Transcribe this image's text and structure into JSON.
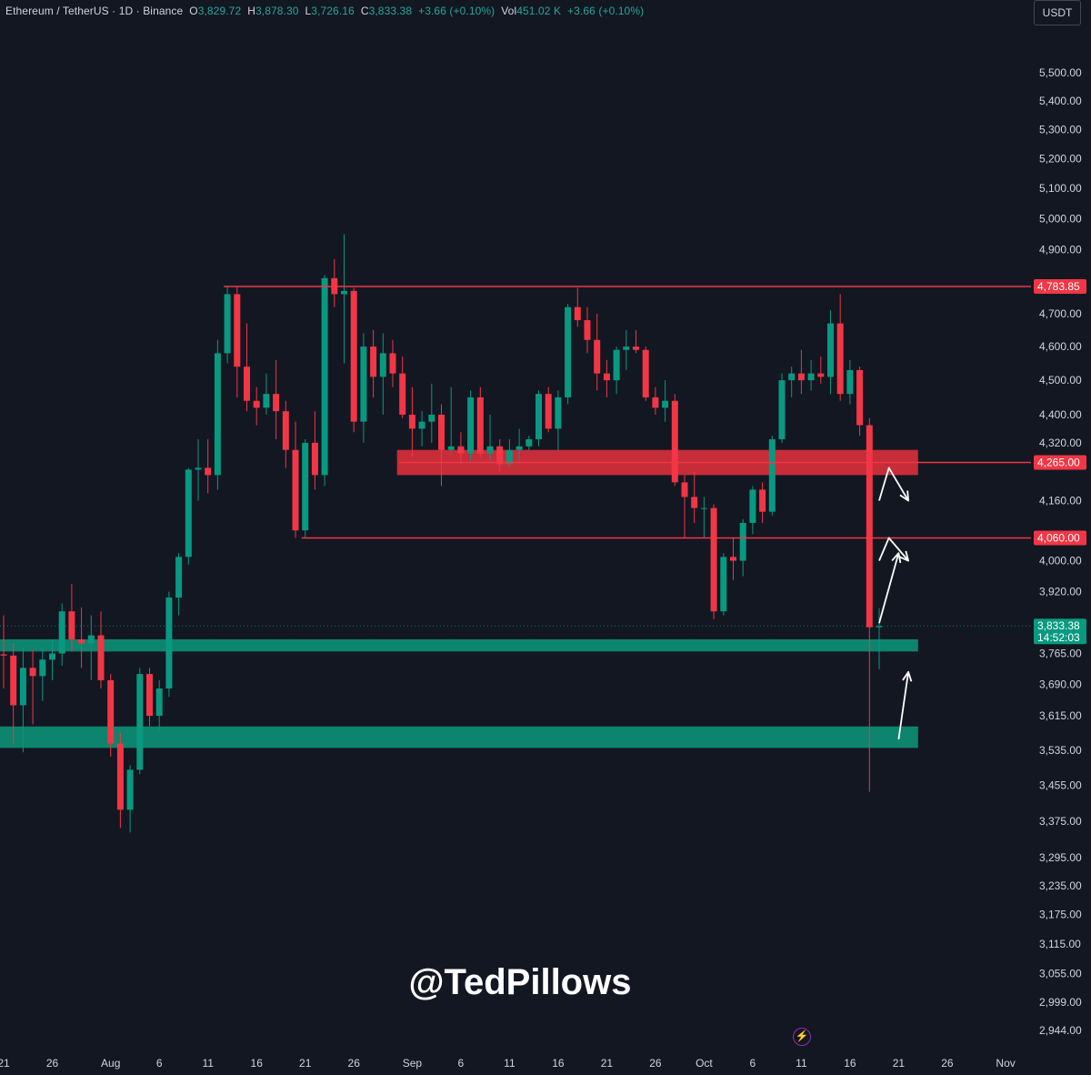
{
  "legend": {
    "symbol": "Ethereum / TetherUS · 1D · Binance",
    "open_label": "O",
    "open": "3,829.72",
    "high_label": "H",
    "high": "3,878.30",
    "low_label": "L",
    "low": "3,726.16",
    "close_label": "C",
    "close": "3,833.38",
    "change": "+3.66 (+0.10%)",
    "vol_label": "Vol",
    "vol": "451.02 K",
    "vol_change": "+3.66 (+0.10%)"
  },
  "currency_button": "USDT",
  "watermark": "@TedPillows",
  "colors": {
    "background": "#131722",
    "up": "#089981",
    "down": "#f23645",
    "resistance_zone": "#e0303c",
    "support_zone": "#0d8a72",
    "arrows": "#ffffff",
    "text": "#d1d4dc"
  },
  "chart_data": {
    "type": "candlestick",
    "symbol": "ETHUSDT",
    "timeframe": "1D",
    "y_axis": {
      "scale": "log",
      "ticks": [
        5500,
        5400,
        5300,
        5200,
        5100,
        5000,
        4900,
        4700,
        4600,
        4500,
        4400,
        4320,
        4160,
        4000,
        3920,
        3765,
        3690,
        3615,
        3535,
        3455,
        3375,
        3295,
        3235,
        3175,
        3115,
        3055,
        2999,
        2944
      ],
      "tick_labels": [
        "5,500.00",
        "5,400.00",
        "5,300.00",
        "5,200.00",
        "5,100.00",
        "5,000.00",
        "4,900.00",
        "4,700.00",
        "4,600.00",
        "4,500.00",
        "4,400.00",
        "4,320.00",
        "4,160.00",
        "4,000.00",
        "3,920.00",
        "3,765.00",
        "3,690.00",
        "3,615.00",
        "3,535.00",
        "3,455.00",
        "3,375.00",
        "3,295.00",
        "3,235.00",
        "3,175.00",
        "3,115.00",
        "3,055.00",
        "2,999.00",
        "2,944.00"
      ]
    },
    "x_axis": {
      "labels": [
        "21",
        "26",
        "Aug",
        "6",
        "11",
        "16",
        "21",
        "26",
        "Sep",
        "6",
        "11",
        "16",
        "21",
        "26",
        "Oct",
        "6",
        "11",
        "16",
        "21",
        "26",
        "Nov"
      ],
      "label_dates": [
        "2025-07-21",
        "2025-07-26",
        "2025-08-01",
        "2025-08-06",
        "2025-08-11",
        "2025-08-16",
        "2025-08-21",
        "2025-08-26",
        "2025-09-01",
        "2025-09-06",
        "2025-09-11",
        "2025-09-16",
        "2025-09-21",
        "2025-09-26",
        "2025-10-01",
        "2025-10-06",
        "2025-10-11",
        "2025-10-16",
        "2025-10-21",
        "2025-10-26",
        "2025-11-01"
      ]
    },
    "candles": [
      {
        "date": "2025-07-21",
        "o": 3763,
        "h": 3860,
        "l": 3680,
        "c": 3760
      },
      {
        "date": "2025-07-22",
        "o": 3760,
        "h": 3790,
        "l": 3550,
        "c": 3640
      },
      {
        "date": "2025-07-23",
        "o": 3640,
        "h": 3780,
        "l": 3530,
        "c": 3730
      },
      {
        "date": "2025-07-24",
        "o": 3730,
        "h": 3775,
        "l": 3595,
        "c": 3710
      },
      {
        "date": "2025-07-25",
        "o": 3710,
        "h": 3780,
        "l": 3650,
        "c": 3750
      },
      {
        "date": "2025-07-26",
        "o": 3750,
        "h": 3800,
        "l": 3700,
        "c": 3765
      },
      {
        "date": "2025-07-27",
        "o": 3765,
        "h": 3890,
        "l": 3735,
        "c": 3870
      },
      {
        "date": "2025-07-28",
        "o": 3870,
        "h": 3940,
        "l": 3770,
        "c": 3800
      },
      {
        "date": "2025-07-29",
        "o": 3800,
        "h": 3880,
        "l": 3730,
        "c": 3790
      },
      {
        "date": "2025-07-30",
        "o": 3790,
        "h": 3860,
        "l": 3700,
        "c": 3810
      },
      {
        "date": "2025-07-31",
        "o": 3810,
        "h": 3870,
        "l": 3680,
        "c": 3700
      },
      {
        "date": "2025-08-01",
        "o": 3700,
        "h": 3715,
        "l": 3520,
        "c": 3550
      },
      {
        "date": "2025-08-02",
        "o": 3550,
        "h": 3575,
        "l": 3360,
        "c": 3400
      },
      {
        "date": "2025-08-03",
        "o": 3400,
        "h": 3500,
        "l": 3350,
        "c": 3490
      },
      {
        "date": "2025-08-04",
        "o": 3490,
        "h": 3730,
        "l": 3480,
        "c": 3715
      },
      {
        "date": "2025-08-05",
        "o": 3715,
        "h": 3730,
        "l": 3590,
        "c": 3615
      },
      {
        "date": "2025-08-06",
        "o": 3615,
        "h": 3700,
        "l": 3580,
        "c": 3680
      },
      {
        "date": "2025-08-07",
        "o": 3680,
        "h": 3920,
        "l": 3660,
        "c": 3905
      },
      {
        "date": "2025-08-08",
        "o": 3905,
        "h": 4020,
        "l": 3860,
        "c": 4010
      },
      {
        "date": "2025-08-09",
        "o": 4010,
        "h": 4250,
        "l": 3990,
        "c": 4245
      },
      {
        "date": "2025-08-10",
        "o": 4245,
        "h": 4330,
        "l": 4160,
        "c": 4250
      },
      {
        "date": "2025-08-11",
        "o": 4250,
        "h": 4330,
        "l": 4180,
        "c": 4230
      },
      {
        "date": "2025-08-12",
        "o": 4230,
        "h": 4620,
        "l": 4190,
        "c": 4580
      },
      {
        "date": "2025-08-13",
        "o": 4580,
        "h": 4785,
        "l": 4550,
        "c": 4760
      },
      {
        "date": "2025-08-14",
        "o": 4760,
        "h": 4785,
        "l": 4450,
        "c": 4540
      },
      {
        "date": "2025-08-15",
        "o": 4540,
        "h": 4670,
        "l": 4410,
        "c": 4440
      },
      {
        "date": "2025-08-16",
        "o": 4440,
        "h": 4480,
        "l": 4370,
        "c": 4420
      },
      {
        "date": "2025-08-17",
        "o": 4420,
        "h": 4520,
        "l": 4400,
        "c": 4460
      },
      {
        "date": "2025-08-18",
        "o": 4460,
        "h": 4560,
        "l": 4330,
        "c": 4410
      },
      {
        "date": "2025-08-19",
        "o": 4410,
        "h": 4440,
        "l": 4250,
        "c": 4300
      },
      {
        "date": "2025-08-20",
        "o": 4300,
        "h": 4380,
        "l": 4060,
        "c": 4080
      },
      {
        "date": "2025-08-21",
        "o": 4080,
        "h": 4330,
        "l": 4060,
        "c": 4320
      },
      {
        "date": "2025-08-22",
        "o": 4320,
        "h": 4410,
        "l": 4190,
        "c": 4230
      },
      {
        "date": "2025-08-23",
        "o": 4230,
        "h": 4820,
        "l": 4200,
        "c": 4810
      },
      {
        "date": "2025-08-24",
        "o": 4810,
        "h": 4870,
        "l": 4720,
        "c": 4760
      },
      {
        "date": "2025-08-25",
        "o": 4760,
        "h": 4950,
        "l": 4550,
        "c": 4770
      },
      {
        "date": "2025-08-26",
        "o": 4770,
        "h": 4780,
        "l": 4350,
        "c": 4380
      },
      {
        "date": "2025-08-27",
        "o": 4380,
        "h": 4640,
        "l": 4320,
        "c": 4600
      },
      {
        "date": "2025-08-28",
        "o": 4600,
        "h": 4650,
        "l": 4450,
        "c": 4510
      },
      {
        "date": "2025-08-29",
        "o": 4510,
        "h": 4640,
        "l": 4400,
        "c": 4580
      },
      {
        "date": "2025-08-30",
        "o": 4580,
        "h": 4620,
        "l": 4480,
        "c": 4520
      },
      {
        "date": "2025-08-31",
        "o": 4520,
        "h": 4570,
        "l": 4390,
        "c": 4400
      },
      {
        "date": "2025-09-01",
        "o": 4400,
        "h": 4480,
        "l": 4280,
        "c": 4360
      },
      {
        "date": "2025-09-02",
        "o": 4360,
        "h": 4410,
        "l": 4310,
        "c": 4380
      },
      {
        "date": "2025-09-03",
        "o": 4380,
        "h": 4490,
        "l": 4320,
        "c": 4400
      },
      {
        "date": "2025-09-04",
        "o": 4400,
        "h": 4430,
        "l": 4200,
        "c": 4300
      },
      {
        "date": "2025-09-05",
        "o": 4300,
        "h": 4480,
        "l": 4290,
        "c": 4310
      },
      {
        "date": "2025-09-06",
        "o": 4310,
        "h": 4350,
        "l": 4260,
        "c": 4290
      },
      {
        "date": "2025-09-07",
        "o": 4290,
        "h": 4470,
        "l": 4270,
        "c": 4450
      },
      {
        "date": "2025-09-08",
        "o": 4450,
        "h": 4480,
        "l": 4280,
        "c": 4290
      },
      {
        "date": "2025-09-09",
        "o": 4290,
        "h": 4400,
        "l": 4270,
        "c": 4310
      },
      {
        "date": "2025-09-10",
        "o": 4310,
        "h": 4330,
        "l": 4240,
        "c": 4260
      },
      {
        "date": "2025-09-11",
        "o": 4260,
        "h": 4330,
        "l": 4250,
        "c": 4300
      },
      {
        "date": "2025-09-12",
        "o": 4300,
        "h": 4360,
        "l": 4270,
        "c": 4310
      },
      {
        "date": "2025-09-13",
        "o": 4310,
        "h": 4340,
        "l": 4300,
        "c": 4330
      },
      {
        "date": "2025-09-14",
        "o": 4330,
        "h": 4470,
        "l": 4310,
        "c": 4460
      },
      {
        "date": "2025-09-15",
        "o": 4460,
        "h": 4480,
        "l": 4350,
        "c": 4360
      },
      {
        "date": "2025-09-16",
        "o": 4360,
        "h": 4470,
        "l": 4300,
        "c": 4450
      },
      {
        "date": "2025-09-17",
        "o": 4450,
        "h": 4730,
        "l": 4430,
        "c": 4720
      },
      {
        "date": "2025-09-18",
        "o": 4720,
        "h": 4780,
        "l": 4660,
        "c": 4680
      },
      {
        "date": "2025-09-19",
        "o": 4680,
        "h": 4720,
        "l": 4580,
        "c": 4620
      },
      {
        "date": "2025-09-20",
        "o": 4620,
        "h": 4700,
        "l": 4470,
        "c": 4520
      },
      {
        "date": "2025-09-21",
        "o": 4520,
        "h": 4560,
        "l": 4450,
        "c": 4500
      },
      {
        "date": "2025-09-22",
        "o": 4500,
        "h": 4600,
        "l": 4460,
        "c": 4590
      },
      {
        "date": "2025-09-23",
        "o": 4590,
        "h": 4650,
        "l": 4530,
        "c": 4600
      },
      {
        "date": "2025-09-24",
        "o": 4600,
        "h": 4650,
        "l": 4580,
        "c": 4590
      },
      {
        "date": "2025-09-25",
        "o": 4590,
        "h": 4600,
        "l": 4440,
        "c": 4450
      },
      {
        "date": "2025-09-26",
        "o": 4450,
        "h": 4480,
        "l": 4400,
        "c": 4420
      },
      {
        "date": "2025-09-27",
        "o": 4420,
        "h": 4500,
        "l": 4380,
        "c": 4440
      },
      {
        "date": "2025-09-28",
        "o": 4440,
        "h": 4460,
        "l": 4200,
        "c": 4210
      },
      {
        "date": "2025-09-29",
        "o": 4210,
        "h": 4230,
        "l": 4060,
        "c": 4170
      },
      {
        "date": "2025-09-30",
        "o": 4170,
        "h": 4240,
        "l": 4100,
        "c": 4140
      },
      {
        "date": "2025-10-01",
        "o": 4140,
        "h": 4170,
        "l": 4060,
        "c": 4140
      },
      {
        "date": "2025-10-02",
        "o": 4140,
        "h": 4150,
        "l": 3850,
        "c": 3870
      },
      {
        "date": "2025-10-03",
        "o": 3870,
        "h": 4020,
        "l": 3860,
        "c": 4010
      },
      {
        "date": "2025-10-04",
        "o": 4010,
        "h": 4060,
        "l": 3950,
        "c": 4000
      },
      {
        "date": "2025-10-05",
        "o": 4000,
        "h": 4110,
        "l": 3960,
        "c": 4100
      },
      {
        "date": "2025-10-06",
        "o": 4100,
        "h": 4200,
        "l": 4070,
        "c": 4190
      },
      {
        "date": "2025-10-07",
        "o": 4190,
        "h": 4210,
        "l": 4100,
        "c": 4130
      },
      {
        "date": "2025-10-08",
        "o": 4130,
        "h": 4340,
        "l": 4120,
        "c": 4330
      },
      {
        "date": "2025-10-09",
        "o": 4330,
        "h": 4520,
        "l": 4320,
        "c": 4500
      },
      {
        "date": "2025-10-10",
        "o": 4500,
        "h": 4540,
        "l": 4450,
        "c": 4520
      },
      {
        "date": "2025-10-11",
        "o": 4520,
        "h": 4590,
        "l": 4460,
        "c": 4500
      },
      {
        "date": "2025-10-12",
        "o": 4500,
        "h": 4560,
        "l": 4470,
        "c": 4520
      },
      {
        "date": "2025-10-13",
        "o": 4520,
        "h": 4570,
        "l": 4490,
        "c": 4510
      },
      {
        "date": "2025-10-14",
        "o": 4510,
        "h": 4710,
        "l": 4460,
        "c": 4670
      },
      {
        "date": "2025-10-15",
        "o": 4670,
        "h": 4760,
        "l": 4440,
        "c": 4460
      },
      {
        "date": "2025-10-16",
        "o": 4460,
        "h": 4560,
        "l": 4430,
        "c": 4530
      },
      {
        "date": "2025-10-17",
        "o": 4530,
        "h": 4540,
        "l": 4340,
        "c": 4370
      },
      {
        "date": "2025-10-18",
        "o": 4370,
        "h": 4390,
        "l": 3440,
        "c": 3830
      },
      {
        "date": "2025-10-19",
        "o": 3830,
        "h": 3878.3,
        "l": 3726.16,
        "c": 3833.38
      }
    ],
    "horizontal_lines": [
      {
        "price": 4783.85,
        "label": "4,783.85",
        "from_date": "2025-08-13",
        "color": "#f23645"
      },
      {
        "price": 4060.0,
        "label": "4,060.00",
        "from_date": "2025-08-21",
        "color": "#f23645"
      },
      {
        "price": 4265.0,
        "label": "4,265.00",
        "from_date": "2025-08-31",
        "color": "#f23645"
      }
    ],
    "zones": [
      {
        "kind": "resistance",
        "top": 4300,
        "bottom": 4230,
        "from_date": "2025-08-31",
        "to_date": "2025-10-23"
      },
      {
        "kind": "support",
        "top": 3800,
        "bottom": 3770,
        "from_date": "2025-07-21",
        "to_date": "2025-10-23"
      },
      {
        "kind": "support",
        "top": 3590,
        "bottom": 3540,
        "from_date": "2025-07-21",
        "to_date": "2025-10-23"
      }
    ],
    "projection_arrows": [
      {
        "points": [
          [
            "2025-10-19",
            4160
          ],
          [
            "2025-10-20",
            4250
          ],
          [
            "2025-10-22",
            4160
          ]
        ]
      },
      {
        "points": [
          [
            "2025-10-19",
            4000
          ],
          [
            "2025-10-20",
            4060
          ],
          [
            "2025-10-22",
            4000
          ]
        ]
      },
      {
        "points": [
          [
            "2025-10-19",
            3840
          ],
          [
            "2025-10-21",
            4020
          ]
        ]
      },
      {
        "points": [
          [
            "2025-10-21",
            3560
          ],
          [
            "2025-10-22",
            3720
          ]
        ]
      }
    ],
    "last_price": {
      "value": 3833.38,
      "label": "3,833.38",
      "countdown": "14:52:03"
    }
  }
}
